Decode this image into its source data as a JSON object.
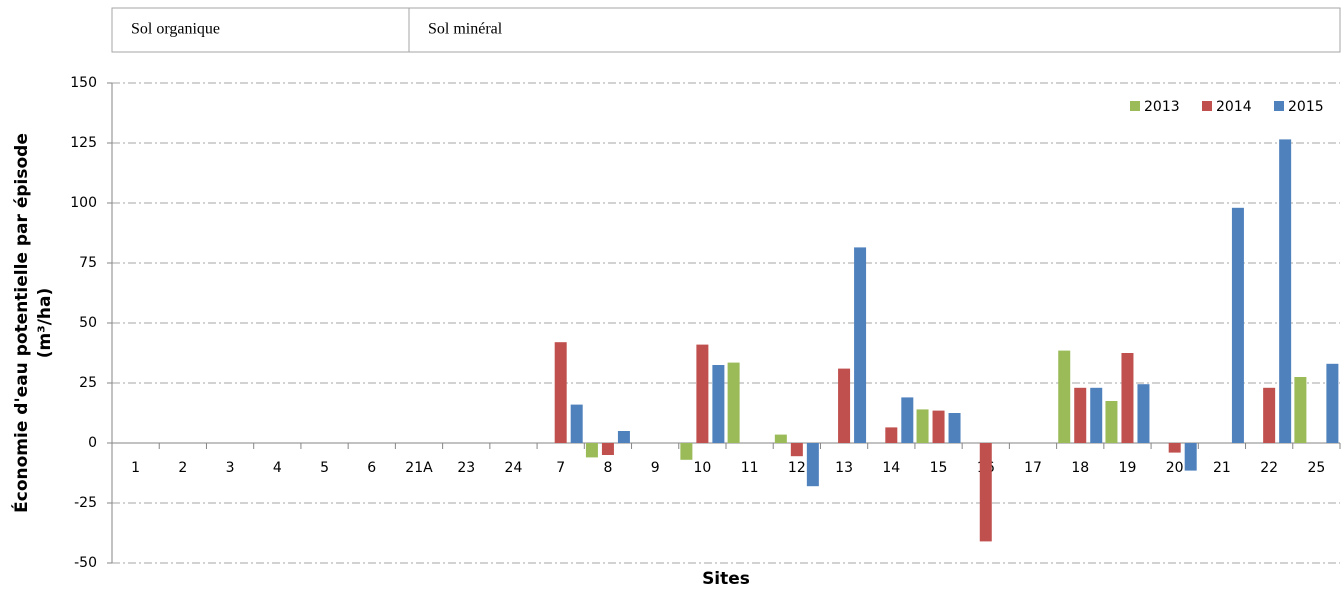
{
  "chart_data": {
    "type": "bar",
    "sections": [
      "Sol organique",
      "Sol minéral"
    ],
    "xlabel": "Sites",
    "ylabel": [
      "Économie d'eau potentielle par épisode",
      "(m³/ha)"
    ],
    "categories": [
      "1",
      "2",
      "3",
      "4",
      "5",
      "6",
      "21A",
      "23",
      "24",
      "7",
      "8",
      "9",
      "10",
      "11",
      "12",
      "13",
      "14",
      "15",
      "16",
      "17",
      "18",
      "19",
      "20",
      "21",
      "22",
      "25"
    ],
    "series": [
      {
        "name": "2013",
        "color": "#9bbb59",
        "values": [
          null,
          null,
          null,
          null,
          null,
          null,
          null,
          null,
          null,
          null,
          -6,
          null,
          -7,
          33.5,
          3.5,
          null,
          null,
          14,
          null,
          null,
          38.5,
          17.5,
          null,
          null,
          null,
          27.5
        ]
      },
      {
        "name": "2014",
        "color": "#c0504d",
        "values": [
          null,
          null,
          null,
          null,
          null,
          null,
          null,
          null,
          null,
          42,
          -5,
          null,
          41,
          null,
          -5.5,
          31,
          6.5,
          13.5,
          -41,
          null,
          23,
          37.5,
          -4,
          null,
          23,
          null
        ]
      },
      {
        "name": "2015",
        "color": "#4f81bd",
        "values": [
          null,
          null,
          null,
          null,
          null,
          null,
          null,
          null,
          null,
          16,
          5,
          null,
          32.5,
          null,
          -18,
          81.5,
          19,
          12.5,
          null,
          null,
          23,
          24.5,
          -11.5,
          98,
          126.5,
          33
        ]
      }
    ],
    "ylim": [
      -50,
      150
    ],
    "yticks": [
      -50,
      -25,
      0,
      25,
      50,
      75,
      100,
      125,
      150
    ],
    "grid": true,
    "legend": "top-right"
  }
}
